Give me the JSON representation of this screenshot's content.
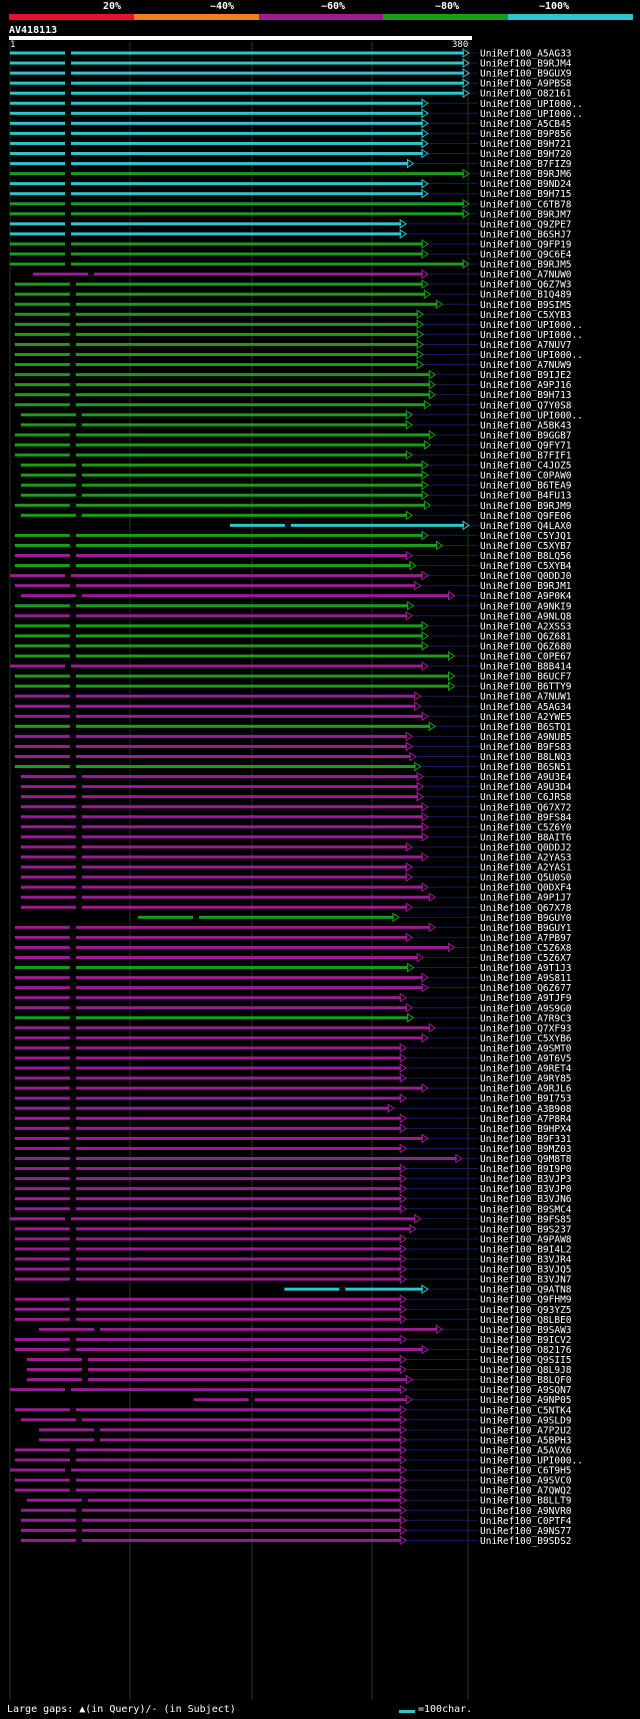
{
  "query": {
    "name": "AV418113",
    "start": "1",
    "end": "380"
  },
  "legend": {
    "labels": [
      "20%",
      "~40%",
      "~60%",
      "~80%",
      "~100%"
    ],
    "colors": [
      "#e8112d",
      "#f07f1c",
      "#9b1d96",
      "#1a9e1a",
      "#2cc5d0"
    ]
  },
  "footer": {
    "text": "Large gaps: ▲(in Query)/- (in Subject)",
    "scale": "=100char."
  },
  "chart_data": {
    "type": "alignment",
    "query_length": 380,
    "hits": [
      {
        "name": "UniRef100_A5AG33",
        "start": 1,
        "end": 380,
        "color": "cyan"
      },
      {
        "name": "UniRef100_B9RJM4",
        "start": 1,
        "end": 380,
        "color": "cyan"
      },
      {
        "name": "UniRef100_B9GUX9",
        "start": 1,
        "end": 380,
        "color": "cyan"
      },
      {
        "name": "UniRef100_A9PBS8",
        "start": 1,
        "end": 380,
        "color": "cyan"
      },
      {
        "name": "UniRef100_O82161",
        "start": 1,
        "end": 380,
        "color": "cyan"
      },
      {
        "name": "UniRef100_UPI000..",
        "start": 1,
        "end": 346,
        "color": "cyan"
      },
      {
        "name": "UniRef100_UPI000..",
        "start": 1,
        "end": 346,
        "color": "cyan"
      },
      {
        "name": "UniRef100_A5CB45",
        "start": 1,
        "end": 346,
        "color": "cyan"
      },
      {
        "name": "UniRef100_B9P856",
        "start": 1,
        "end": 346,
        "color": "cyan"
      },
      {
        "name": "UniRef100_B9H721",
        "start": 1,
        "end": 346,
        "color": "cyan"
      },
      {
        "name": "UniRef100_B9H720",
        "start": 1,
        "end": 346,
        "color": "cyan"
      },
      {
        "name": "UniRef100_B7FIZ9",
        "start": 1,
        "end": 334,
        "color": "cyan"
      },
      {
        "name": "UniRef100_B9RJM6",
        "start": 1,
        "end": 380,
        "color": "green"
      },
      {
        "name": "UniRef100_B9ND24",
        "start": 1,
        "end": 346,
        "color": "cyan"
      },
      {
        "name": "UniRef100_B9H715",
        "start": 1,
        "end": 346,
        "color": "cyan"
      },
      {
        "name": "UniRef100_C6TB78",
        "start": 1,
        "end": 380,
        "color": "green"
      },
      {
        "name": "UniRef100_B9RJM7",
        "start": 1,
        "end": 380,
        "color": "green"
      },
      {
        "name": "UniRef100_Q9ZPE7",
        "start": 1,
        "end": 328,
        "color": "cyan"
      },
      {
        "name": "UniRef100_B6SHJ7",
        "start": 1,
        "end": 328,
        "color": "cyan"
      },
      {
        "name": "UniRef100_Q9FP19",
        "start": 1,
        "end": 346,
        "color": "green"
      },
      {
        "name": "UniRef100_Q9C6E4",
        "start": 1,
        "end": 346,
        "color": "green"
      },
      {
        "name": "UniRef100_B9RJM5",
        "start": 1,
        "end": 380,
        "color": "green"
      },
      {
        "name": "UniRef100_A7NUW0",
        "start": 20,
        "end": 346,
        "color": "purple"
      },
      {
        "name": "UniRef100_Q6Z7W3",
        "start": 5,
        "end": 346,
        "color": "green"
      },
      {
        "name": "UniRef100_B1Q489",
        "start": 5,
        "end": 348,
        "color": "green"
      },
      {
        "name": "UniRef100_B9SIM5",
        "start": 5,
        "end": 358,
        "color": "green"
      },
      {
        "name": "UniRef100_C5XYB3",
        "start": 5,
        "end": 342,
        "color": "green"
      },
      {
        "name": "UniRef100_UPI000..",
        "start": 5,
        "end": 342,
        "color": "green"
      },
      {
        "name": "UniRef100_UPI000..",
        "start": 5,
        "end": 342,
        "color": "green"
      },
      {
        "name": "UniRef100_A7NUV7",
        "start": 5,
        "end": 342,
        "color": "green"
      },
      {
        "name": "UniRef100_UPI000..",
        "start": 5,
        "end": 342,
        "color": "green"
      },
      {
        "name": "UniRef100_A7NUW9",
        "start": 5,
        "end": 342,
        "color": "green"
      },
      {
        "name": "UniRef100_B9IJE2",
        "start": 5,
        "end": 352,
        "color": "green"
      },
      {
        "name": "UniRef100_A9PJ16",
        "start": 5,
        "end": 352,
        "color": "green"
      },
      {
        "name": "UniRef100_B9H713",
        "start": 5,
        "end": 352,
        "color": "green"
      },
      {
        "name": "UniRef100_Q7Y0S8",
        "start": 5,
        "end": 348,
        "color": "green"
      },
      {
        "name": "UniRef100_UPI000..",
        "start": 10,
        "end": 333,
        "color": "green"
      },
      {
        "name": "UniRef100_A5BK43",
        "start": 10,
        "end": 333,
        "color": "green"
      },
      {
        "name": "UniRef100_B9GGB7",
        "start": 5,
        "end": 352,
        "color": "green"
      },
      {
        "name": "UniRef100_Q9FY71",
        "start": 5,
        "end": 348,
        "color": "green"
      },
      {
        "name": "UniRef100_B7FIF1",
        "start": 5,
        "end": 333,
        "color": "green"
      },
      {
        "name": "UniRef100_C4JOZ5",
        "start": 10,
        "end": 346,
        "color": "green"
      },
      {
        "name": "UniRef100_C0PAW0",
        "start": 10,
        "end": 346,
        "color": "green"
      },
      {
        "name": "UniRef100_B6TEA9",
        "start": 10,
        "end": 346,
        "color": "green"
      },
      {
        "name": "UniRef100_B4FU13",
        "start": 10,
        "end": 346,
        "color": "green"
      },
      {
        "name": "UniRef100_B9RJM9",
        "start": 5,
        "end": 348,
        "color": "green"
      },
      {
        "name": "UniRef100_Q9FE06",
        "start": 10,
        "end": 333,
        "color": "green"
      },
      {
        "name": "UniRef100_Q4LAX0",
        "start": 183,
        "end": 380,
        "color": "cyan"
      },
      {
        "name": "UniRef100_C5YJQ1",
        "start": 5,
        "end": 346,
        "color": "green"
      },
      {
        "name": "UniRef100_C5XYB7",
        "start": 5,
        "end": 358,
        "color": "green"
      },
      {
        "name": "UniRef100_B8LQ56",
        "start": 5,
        "end": 333,
        "color": "purple"
      },
      {
        "name": "UniRef100_C5XYB4",
        "start": 5,
        "end": 336,
        "color": "green"
      },
      {
        "name": "UniRef100_Q0DDJ0",
        "start": 1,
        "end": 346,
        "color": "purple"
      },
      {
        "name": "UniRef100_B9RJM1",
        "start": 5,
        "end": 340,
        "color": "purple"
      },
      {
        "name": "UniRef100_A9P0K4",
        "start": 10,
        "end": 368,
        "color": "purple"
      },
      {
        "name": "UniRef100_A9NKI9",
        "start": 5,
        "end": 334,
        "color": "green"
      },
      {
        "name": "UniRef100_A9NLQ8",
        "start": 5,
        "end": 333,
        "color": "purple"
      },
      {
        "name": "UniRef100_A2XSS3",
        "start": 5,
        "end": 346,
        "color": "green"
      },
      {
        "name": "UniRef100_Q6Z681",
        "start": 5,
        "end": 346,
        "color": "green"
      },
      {
        "name": "UniRef100_Q6Z680",
        "start": 5,
        "end": 346,
        "color": "green"
      },
      {
        "name": "UniRef100_C0PE67",
        "start": 5,
        "end": 368,
        "color": "green"
      },
      {
        "name": "UniRef100_B8B414",
        "start": 1,
        "end": 346,
        "color": "purple"
      },
      {
        "name": "UniRef100_B6UCF7",
        "start": 5,
        "end": 368,
        "color": "green"
      },
      {
        "name": "UniRef100_B6TTY9",
        "start": 5,
        "end": 368,
        "color": "green"
      },
      {
        "name": "UniRef100_A7NUW1",
        "start": 5,
        "end": 340,
        "color": "purple"
      },
      {
        "name": "UniRef100_A5AG34",
        "start": 5,
        "end": 340,
        "color": "purple"
      },
      {
        "name": "UniRef100_A2YWE5",
        "start": 5,
        "end": 346,
        "color": "purple"
      },
      {
        "name": "UniRef100_B6STQ1",
        "start": 5,
        "end": 352,
        "color": "green"
      },
      {
        "name": "UniRef100_A9NUB5",
        "start": 5,
        "end": 333,
        "color": "purple"
      },
      {
        "name": "UniRef100_B9FS83",
        "start": 5,
        "end": 333,
        "color": "purple"
      },
      {
        "name": "UniRef100_B8LNQ3",
        "start": 5,
        "end": 336,
        "color": "purple"
      },
      {
        "name": "UniRef100_B6SN51",
        "start": 5,
        "end": 340,
        "color": "green"
      },
      {
        "name": "UniRef100_A9U3E4",
        "start": 10,
        "end": 342,
        "color": "purple"
      },
      {
        "name": "UniRef100_A9U3D4",
        "start": 10,
        "end": 342,
        "color": "purple"
      },
      {
        "name": "UniRef100_C6JRS8",
        "start": 10,
        "end": 342,
        "color": "purple"
      },
      {
        "name": "UniRef100_Q67X72",
        "start": 10,
        "end": 346,
        "color": "purple"
      },
      {
        "name": "UniRef100_B9FS84",
        "start": 10,
        "end": 346,
        "color": "purple"
      },
      {
        "name": "UniRef100_C5Z6Y0",
        "start": 10,
        "end": 346,
        "color": "purple"
      },
      {
        "name": "UniRef100_B8AIT6",
        "start": 10,
        "end": 346,
        "color": "purple"
      },
      {
        "name": "UniRef100_Q0DDJ2",
        "start": 10,
        "end": 333,
        "color": "purple"
      },
      {
        "name": "UniRef100_A2YAS3",
        "start": 10,
        "end": 346,
        "color": "purple"
      },
      {
        "name": "UniRef100_A2YAS1",
        "start": 10,
        "end": 333,
        "color": "purple"
      },
      {
        "name": "UniRef100_Q5U0S0",
        "start": 10,
        "end": 333,
        "color": "purple"
      },
      {
        "name": "UniRef100_Q0DXF4",
        "start": 10,
        "end": 346,
        "color": "purple"
      },
      {
        "name": "UniRef100_A9P1J7",
        "start": 10,
        "end": 352,
        "color": "purple"
      },
      {
        "name": "UniRef100_Q67X78",
        "start": 10,
        "end": 333,
        "color": "purple"
      },
      {
        "name": "UniRef100_B9GUY0",
        "start": 107,
        "end": 322,
        "color": "green"
      },
      {
        "name": "UniRef100_B9GUY1",
        "start": 5,
        "end": 352,
        "color": "purple"
      },
      {
        "name": "UniRef100_A7PB97",
        "start": 5,
        "end": 333,
        "color": "purple"
      },
      {
        "name": "UniRef100_C5Z6X8",
        "start": 5,
        "end": 368,
        "color": "purple"
      },
      {
        "name": "UniRef100_C5Z6X7",
        "start": 5,
        "end": 342,
        "color": "purple"
      },
      {
        "name": "UniRef100_A9T1J3",
        "start": 5,
        "end": 334,
        "color": "green"
      },
      {
        "name": "UniRef100_A9S811",
        "start": 5,
        "end": 346,
        "color": "purple"
      },
      {
        "name": "UniRef100_Q6Z677",
        "start": 5,
        "end": 346,
        "color": "purple"
      },
      {
        "name": "UniRef100_A9TJF9",
        "start": 5,
        "end": 328,
        "color": "purple"
      },
      {
        "name": "UniRef100_A9S9G0",
        "start": 5,
        "end": 333,
        "color": "purple"
      },
      {
        "name": "UniRef100_A7R9C3",
        "start": 5,
        "end": 334,
        "color": "green"
      },
      {
        "name": "UniRef100_Q7XF93",
        "start": 5,
        "end": 352,
        "color": "purple"
      },
      {
        "name": "UniRef100_C5XYB6",
        "start": 5,
        "end": 346,
        "color": "purple"
      },
      {
        "name": "UniRef100_A9SMT0",
        "start": 5,
        "end": 328,
        "color": "purple"
      },
      {
        "name": "UniRef100_A9T6V5",
        "start": 5,
        "end": 328,
        "color": "purple"
      },
      {
        "name": "UniRef100_A9RET4",
        "start": 5,
        "end": 328,
        "color": "purple"
      },
      {
        "name": "UniRef100_A9RY85",
        "start": 5,
        "end": 328,
        "color": "purple"
      },
      {
        "name": "UniRef100_A9RJL6",
        "start": 5,
        "end": 346,
        "color": "purple"
      },
      {
        "name": "UniRef100_B9I753",
        "start": 5,
        "end": 328,
        "color": "purple"
      },
      {
        "name": "UniRef100_A3B908",
        "start": 5,
        "end": 318,
        "color": "purple"
      },
      {
        "name": "UniRef100_A7P8R4",
        "start": 5,
        "end": 328,
        "color": "purple"
      },
      {
        "name": "UniRef100_B9HPX4",
        "start": 5,
        "end": 328,
        "color": "purple"
      },
      {
        "name": "UniRef100_B9F331",
        "start": 5,
        "end": 346,
        "color": "purple"
      },
      {
        "name": "UniRef100_B9MZ03",
        "start": 5,
        "end": 328,
        "color": "purple"
      },
      {
        "name": "UniRef100_Q9M8T8",
        "start": 5,
        "end": 374,
        "color": "purple"
      },
      {
        "name": "UniRef100_B9I9P0",
        "start": 5,
        "end": 328,
        "color": "purple"
      },
      {
        "name": "UniRef100_B3VJP3",
        "start": 5,
        "end": 328,
        "color": "purple"
      },
      {
        "name": "UniRef100_B3VJP0",
        "start": 5,
        "end": 328,
        "color": "purple"
      },
      {
        "name": "UniRef100_B3VJN6",
        "start": 5,
        "end": 328,
        "color": "purple"
      },
      {
        "name": "UniRef100_B9SMC4",
        "start": 5,
        "end": 328,
        "color": "purple"
      },
      {
        "name": "UniRef100_B9FS85",
        "start": 1,
        "end": 340,
        "color": "purple"
      },
      {
        "name": "UniRef100_B9S237",
        "start": 5,
        "end": 336,
        "color": "purple"
      },
      {
        "name": "UniRef100_A9PAW8",
        "start": 5,
        "end": 328,
        "color": "purple"
      },
      {
        "name": "UniRef100_B9I4L2",
        "start": 5,
        "end": 328,
        "color": "purple"
      },
      {
        "name": "UniRef100_B3VJR4",
        "start": 5,
        "end": 328,
        "color": "purple"
      },
      {
        "name": "UniRef100_B3VJQ5",
        "start": 5,
        "end": 328,
        "color": "purple"
      },
      {
        "name": "UniRef100_B3VJN7",
        "start": 5,
        "end": 328,
        "color": "purple"
      },
      {
        "name": "UniRef100_Q9ATN8",
        "start": 228,
        "end": 346,
        "color": "cyan"
      },
      {
        "name": "UniRef100_Q9FHM9",
        "start": 5,
        "end": 328,
        "color": "purple"
      },
      {
        "name": "UniRef100_Q93YZ5",
        "start": 5,
        "end": 328,
        "color": "purple"
      },
      {
        "name": "UniRef100_Q8LBE0",
        "start": 5,
        "end": 328,
        "color": "purple"
      },
      {
        "name": "UniRef100_B9SAW3",
        "start": 25,
        "end": 358,
        "color": "purple"
      },
      {
        "name": "UniRef100_B9ICV2",
        "start": 5,
        "end": 328,
        "color": "purple"
      },
      {
        "name": "UniRef100_O82176",
        "start": 5,
        "end": 346,
        "color": "purple"
      },
      {
        "name": "UniRef100_Q9SII5",
        "start": 15,
        "end": 328,
        "color": "purple"
      },
      {
        "name": "UniRef100_Q8L9J8",
        "start": 15,
        "end": 328,
        "color": "purple"
      },
      {
        "name": "UniRef100_B8LQF0",
        "start": 15,
        "end": 333,
        "color": "purple"
      },
      {
        "name": "UniRef100_A9SQN7",
        "start": 1,
        "end": 328,
        "color": "purple"
      },
      {
        "name": "UniRef100_A9NP05",
        "start": 153,
        "end": 333,
        "color": "purple"
      },
      {
        "name": "UniRef100_C5NTK4",
        "start": 5,
        "end": 328,
        "color": "purple"
      },
      {
        "name": "UniRef100_A9SLD9",
        "start": 10,
        "end": 328,
        "color": "purple"
      },
      {
        "name": "UniRef100_A7P2U2",
        "start": 25,
        "end": 328,
        "color": "purple"
      },
      {
        "name": "UniRef100_A5BPH3",
        "start": 25,
        "end": 328,
        "color": "purple"
      },
      {
        "name": "UniRef100_A5AVX6",
        "start": 5,
        "end": 328,
        "color": "purple"
      },
      {
        "name": "UniRef100_UPI000..",
        "start": 5,
        "end": 328,
        "color": "purple"
      },
      {
        "name": "UniRef100_C6T9H5",
        "start": 1,
        "end": 328,
        "color": "purple"
      },
      {
        "name": "UniRef100_A9SVC0",
        "start": 5,
        "end": 328,
        "color": "purple"
      },
      {
        "name": "UniRef100_A7QWQ2",
        "start": 5,
        "end": 328,
        "color": "purple"
      },
      {
        "name": "UniRef100_B8LLT9",
        "start": 15,
        "end": 328,
        "color": "purple"
      },
      {
        "name": "UniRef100_A9NVR0",
        "start": 10,
        "end": 328,
        "color": "purple"
      },
      {
        "name": "UniRef100_C0PTF4",
        "start": 10,
        "end": 328,
        "color": "purple"
      },
      {
        "name": "UniRef100_A9NS77",
        "start": 10,
        "end": 328,
        "color": "purple"
      },
      {
        "name": "UniRef100_B9SDS2",
        "start": 10,
        "end": 328,
        "color": "purple"
      }
    ]
  }
}
